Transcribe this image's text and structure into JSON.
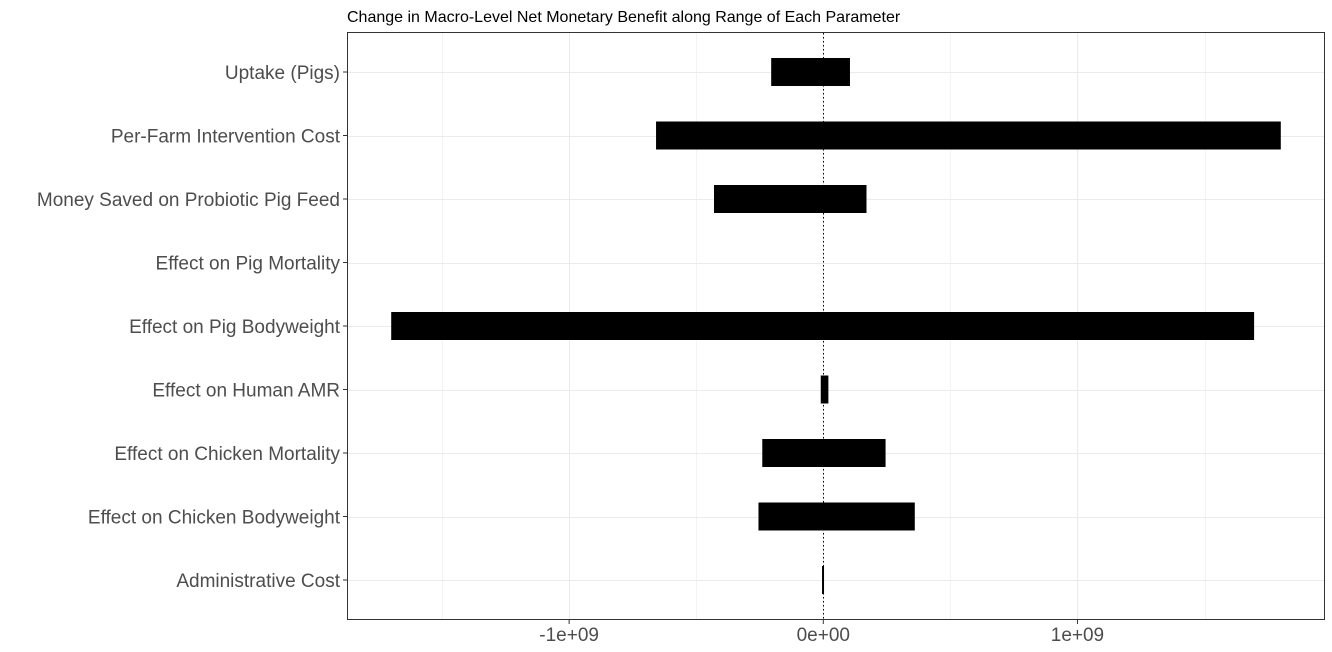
{
  "chart_data": {
    "type": "bar",
    "orientation": "horizontal",
    "title": "Change in Macro-Level Net Monetary Benefit along Range of Each Parameter",
    "xlabel": "",
    "ylabel": "",
    "categories": [
      "Uptake (Pigs)",
      "Per-Farm Intervention Cost",
      "Money Saved on Probiotic Pig Feed",
      "Effect on Pig Mortality",
      "Effect on Pig Bodyweight",
      "Effect on Human AMR",
      "Effect on Chicken Mortality",
      "Effect on Chicken Bodyweight",
      "Administrative Cost"
    ],
    "ranges": [
      [
        -205000000,
        105000000
      ],
      [
        -658000000,
        1800000000
      ],
      [
        -430000000,
        170000000
      ],
      [
        0,
        0
      ],
      [
        -1700000000,
        1695000000
      ],
      [
        -10000000,
        20000000
      ],
      [
        -240000000,
        245000000
      ],
      [
        -255000000,
        360000000
      ],
      [
        -5000000,
        0
      ]
    ],
    "xlim": [
      -1870000000,
      1970000000
    ],
    "x_ticks": [
      {
        "value": -1000000000,
        "label": "-1e+09"
      },
      {
        "value": 0,
        "label": "0e+00"
      },
      {
        "value": 1000000000,
        "label": "1e+09"
      }
    ],
    "x_minor_ticks": [
      -1500000000,
      -500000000,
      500000000,
      1500000000
    ],
    "reference_line": 0,
    "bar_color": "#000000",
    "grid": true,
    "grid_color": "#ebebeb",
    "legend": "none"
  }
}
